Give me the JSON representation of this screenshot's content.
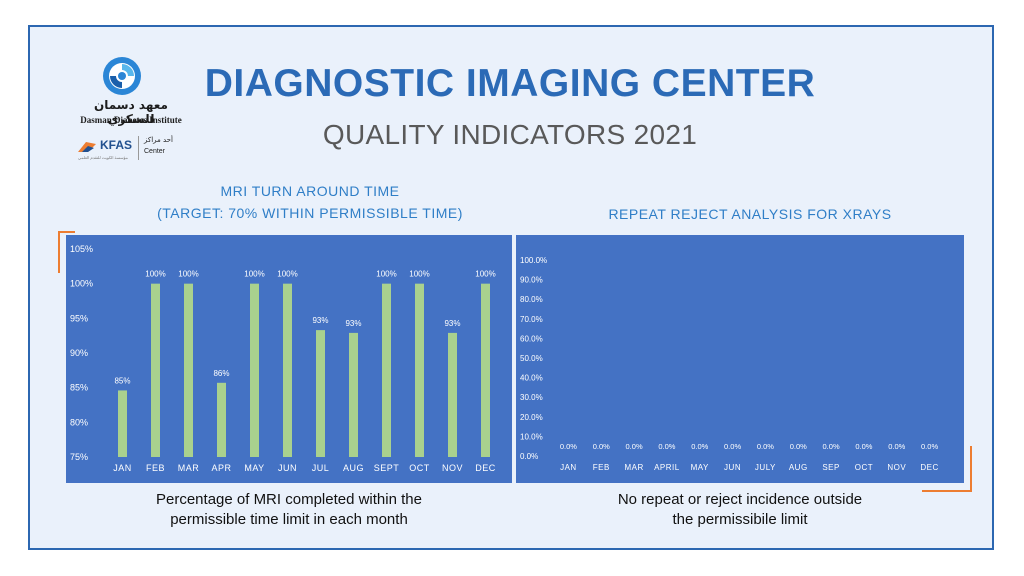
{
  "logo": {
    "arabic_name": "معهد دسمان للسكري",
    "english_name": "Dasman Diabetes Institute",
    "kfas_label": "KFAS",
    "kfas_subtitle": "مؤسسة الكويت للتقدم العلمي",
    "partner_arabic": "أحد مراكز",
    "partner_center": "Center"
  },
  "header": {
    "title": "DIAGNOSTIC IMAGING CENTER",
    "subtitle": "QUALITY INDICATORS 2021"
  },
  "left_chart_title": {
    "line1": "MRI TURN AROUND TIME",
    "line2": "(TARGET: 70% WITHIN PERMISSIBLE TIME)"
  },
  "right_chart_title": "REPEAT REJECT ANALYSIS FOR XRAYS",
  "left_caption": {
    "line1": "Percentage of MRI completed within the",
    "line2": "permissible time limit in each month"
  },
  "right_caption": {
    "line1": "No repeat or reject incidence outside",
    "line2": "the permissibile limit"
  },
  "colors": {
    "brand_blue": "#2b6ab6",
    "panel_blue": "#4472c4",
    "bar_green": "#a9d18e",
    "accent_orange": "#ed7d31"
  },
  "chart_data": [
    {
      "type": "bar",
      "title": "MRI TURN AROUND TIME (TARGET: 70% WITHIN PERMISSIBLE TIME)",
      "categories": [
        "JAN",
        "FEB",
        "MAR",
        "APR",
        "MAY",
        "JUN",
        "JUL",
        "AUG",
        "SEPT",
        "OCT",
        "NOV",
        "DEC"
      ],
      "values": [
        84.6,
        100,
        100,
        85.7,
        100,
        100,
        93.3,
        92.9,
        100,
        100,
        92.9,
        100
      ],
      "data_labels": [
        "85%",
        "100%",
        "100%",
        "86%",
        "100%",
        "100%",
        "93%",
        "93%",
        "100%",
        "100%",
        "93%",
        "100%"
      ],
      "ylim": [
        75,
        105
      ],
      "yticks": [
        "75%",
        "80%",
        "85%",
        "90%",
        "95%",
        "100%",
        "105%"
      ],
      "grid": false,
      "bar_color": "#a9d18e"
    },
    {
      "type": "bar",
      "title": "REPEAT REJECT ANALYSIS FOR XRAYS",
      "categories": [
        "JAN",
        "FEB",
        "MAR",
        "APRIL",
        "MAY",
        "JUN",
        "JULY",
        "AUG",
        "SEP",
        "OCT",
        "NOV",
        "DEC"
      ],
      "values": [
        0,
        0,
        0,
        0,
        0,
        0,
        0,
        0,
        0,
        0,
        0,
        0
      ],
      "data_labels": [
        "0.0%",
        "0.0%",
        "0.0%",
        "0.0%",
        "0.0%",
        "0.0%",
        "0.0%",
        "0.0%",
        "0.0%",
        "0.0%",
        "0.0%",
        "0.0%"
      ],
      "ylim": [
        0,
        100
      ],
      "yticks": [
        "0.0%",
        "10.0%",
        "20.0%",
        "30.0%",
        "40.0%",
        "50.0%",
        "60.0%",
        "70.0%",
        "80.0%",
        "90.0%",
        "100.0%"
      ],
      "grid": false
    }
  ]
}
